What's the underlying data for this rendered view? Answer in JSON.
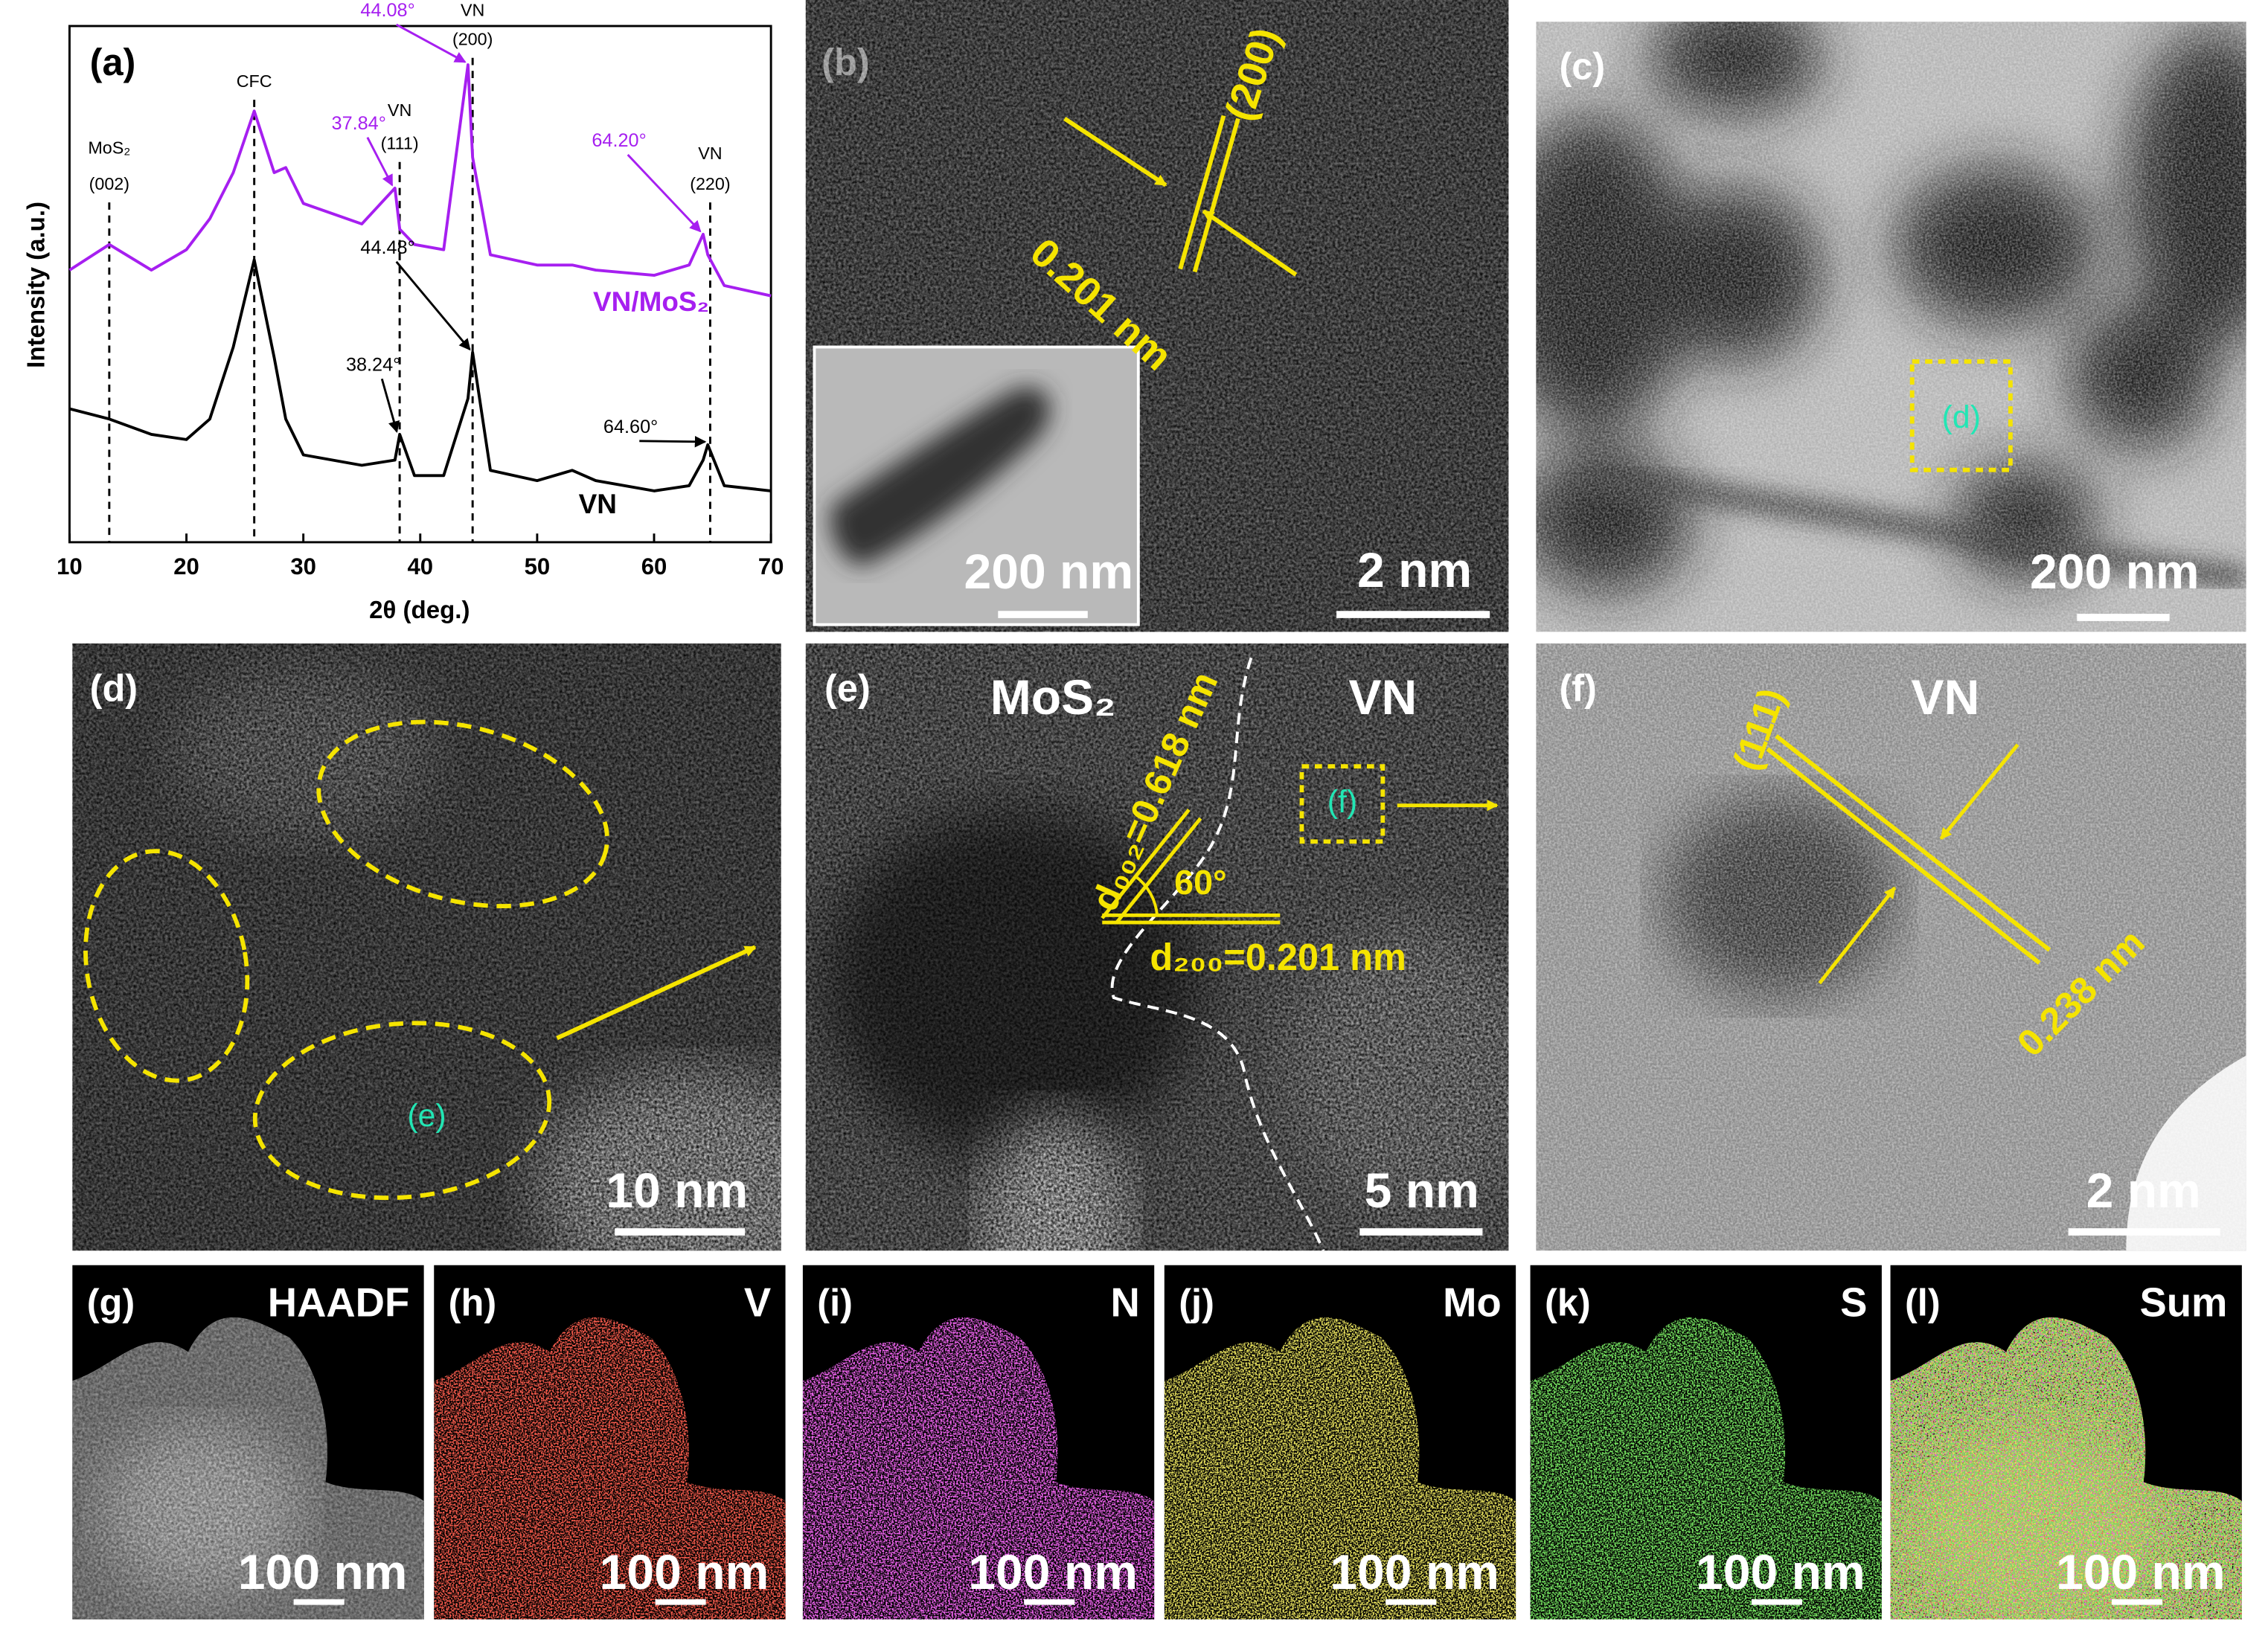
{
  "chart_data": {
    "type": "line",
    "panel_label": "(a)",
    "x_label": "2θ (deg.)",
    "y_label": "Intensity (a.u.)",
    "x": [
      10,
      13.4,
      17,
      20,
      22,
      24,
      25.8,
      27.5,
      28.5,
      30,
      35,
      37.84,
      38.24,
      39.5,
      42,
      44.08,
      44.48,
      46,
      50,
      53,
      55,
      60,
      63,
      64.2,
      64.6,
      66,
      70
    ],
    "xlim": [
      10,
      70
    ],
    "xticks": [
      10,
      20,
      30,
      40,
      50,
      60,
      70
    ],
    "ylim": [
      0,
      100
    ],
    "series": [
      {
        "name": "VN/MoS₂",
        "color": "#a61ff0",
        "values": [
          53,
          58,
          53,
          57,
          63,
          72,
          84,
          72,
          73,
          66,
          62,
          69,
          61,
          58,
          57,
          93,
          75,
          56,
          54,
          54,
          53,
          52,
          54,
          60,
          56,
          50,
          48
        ],
        "peak_labels": [
          {
            "x": 37.84,
            "label": "37.84°"
          },
          {
            "x": 44.08,
            "label": "44.08°"
          },
          {
            "x": 64.2,
            "label": "64.20°"
          }
        ]
      },
      {
        "name": "VN",
        "color": "#000000",
        "values": [
          26,
          24,
          21,
          20,
          24,
          38,
          55,
          36,
          24,
          17,
          15,
          16,
          21,
          13,
          13,
          28,
          37,
          14,
          12,
          14,
          12,
          10,
          11,
          16,
          19,
          11,
          10
        ],
        "peak_labels": [
          {
            "x": 38.24,
            "label": "38.24°"
          },
          {
            "x": 44.48,
            "label": "44.48°"
          },
          {
            "x": 64.6,
            "label": "64.60°"
          }
        ]
      }
    ],
    "reference_lines": [
      {
        "x": 13.4,
        "label": "MoS₂",
        "sublabel": "(002)"
      },
      {
        "x": 25.8,
        "label": "CFC"
      },
      {
        "x": 38.24,
        "label": "VN",
        "sublabel": "(111)"
      },
      {
        "x": 44.48,
        "label": "VN",
        "sublabel": "(200)"
      },
      {
        "x": 64.8,
        "label": "VN",
        "sublabel": "(220)"
      }
    ]
  },
  "panels": [
    {
      "label": "(b)",
      "lattice_plane": "(200)",
      "spacing": "0.201 nm",
      "inset_scale_bar": "200 nm",
      "scale_bar": "2 nm"
    },
    {
      "label": "(c)",
      "region": "(d)",
      "scale_bar": "200 nm"
    },
    {
      "label": "(d)",
      "region": "(e)",
      "scale_bar": "10 nm"
    },
    {
      "label": "(e)",
      "phase_1": "MoS₂",
      "phase_2": "VN",
      "spacing_1": "d₀₀₂=0.618 nm",
      "angle": "60°",
      "spacing_2": "d₂₀₀=0.201 nm",
      "region": "(f)",
      "scale_bar": "5 nm"
    },
    {
      "label": "(f)",
      "phase": "VN",
      "lattice_plane": "(111)",
      "spacing": "0.238 nm",
      "scale_bar": "2 nm"
    },
    {
      "label": "(g)",
      "signal": "HAADF",
      "scale_bar": "100 nm",
      "color": "#d0d0d0"
    },
    {
      "label": "(h)",
      "signal": "V",
      "scale_bar": "100 nm",
      "color": "#e41a12"
    },
    {
      "label": "(i)",
      "signal": "N",
      "scale_bar": "100 nm",
      "color": "#d21fd2"
    },
    {
      "label": "(j)",
      "signal": "Mo",
      "scale_bar": "100 nm",
      "color": "#c9bd1c"
    },
    {
      "label": "(k)",
      "signal": "S",
      "scale_bar": "100 nm",
      "color": "#2ec41e"
    },
    {
      "label": "(l)",
      "signal": "Sum",
      "scale_bar": "100 nm"
    }
  ]
}
